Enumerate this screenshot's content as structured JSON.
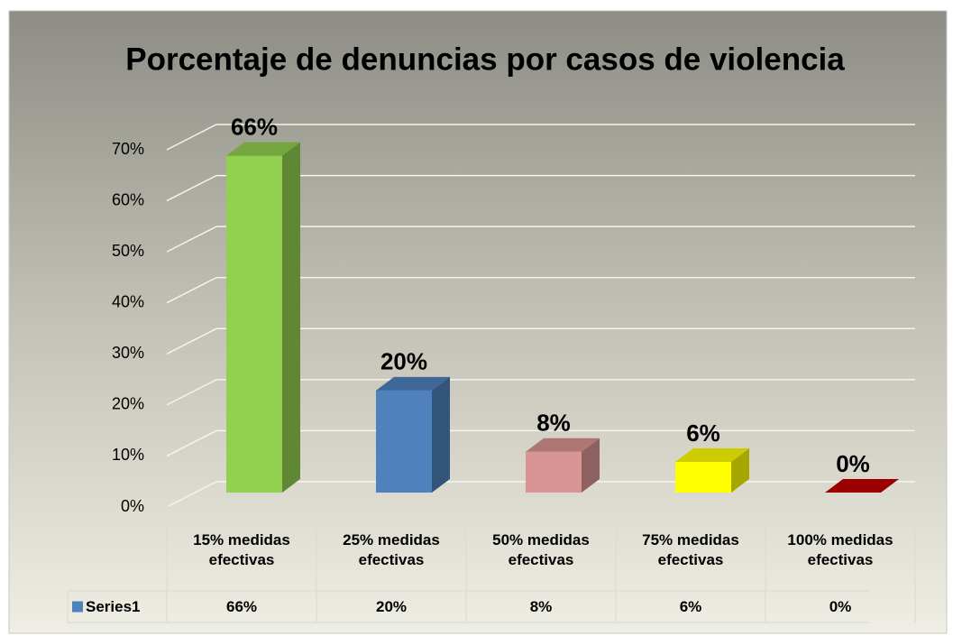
{
  "chart_data": {
    "type": "bar3d",
    "title": "Porcentaje de denuncias por casos de violencia",
    "categories": [
      "15% medidas efectivas",
      "25% medidas efectivas",
      "50% medidas efectivas",
      "75% medidas efectivas",
      "100% medidas efectivas"
    ],
    "series": [
      {
        "name": "Series1",
        "color": "#4f81bd",
        "values": [
          66,
          20,
          8,
          6,
          0
        ],
        "value_labels": [
          "66%",
          "20%",
          "8%",
          "6%",
          "0%"
        ]
      }
    ],
    "bar_colors": [
      "#92d050",
      "#4f81bd",
      "#d99594",
      "#ffff00",
      "#c00000"
    ],
    "ylim": [
      0,
      70
    ],
    "yticks": [
      {
        "value": 0,
        "label": "0%"
      },
      {
        "value": 10,
        "label": "10%"
      },
      {
        "value": 20,
        "label": "20%"
      },
      {
        "value": 30,
        "label": "30%"
      },
      {
        "value": 40,
        "label": "40%"
      },
      {
        "value": 50,
        "label": "50%"
      },
      {
        "value": 60,
        "label": "60%"
      },
      {
        "value": 70,
        "label": "70%"
      }
    ],
    "grid": true,
    "data_table": true
  }
}
